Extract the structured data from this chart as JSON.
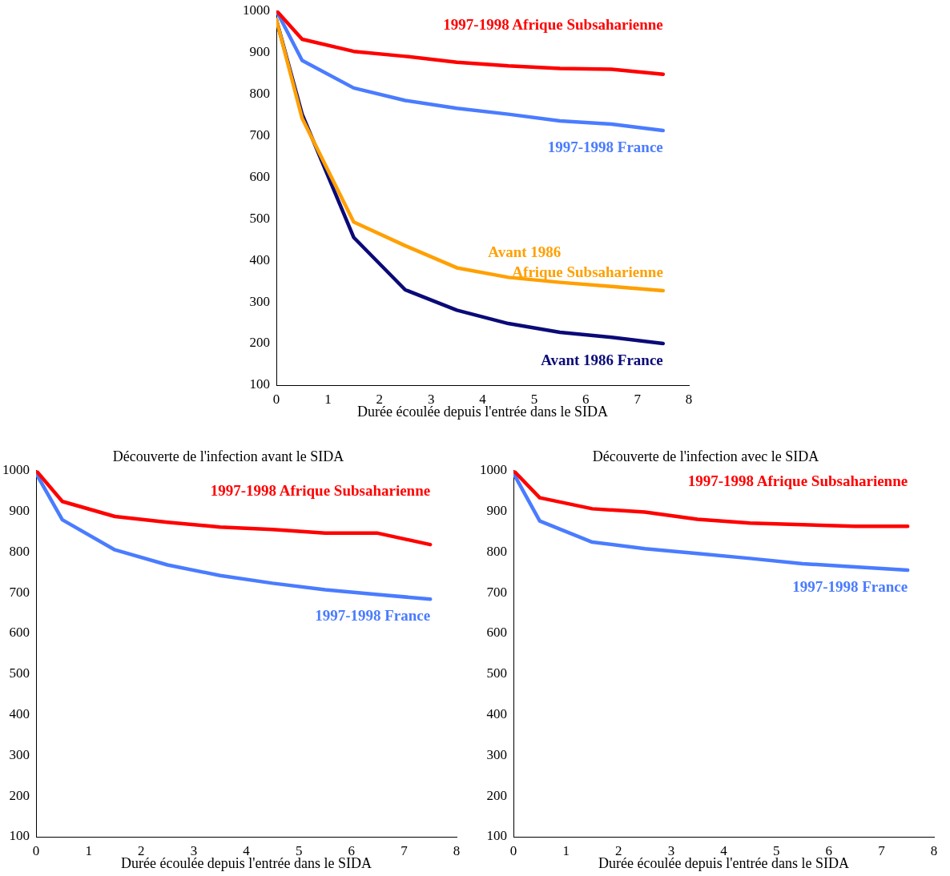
{
  "chart_data": [
    {
      "type": "line",
      "xlabel": "Durée écoulée depuis l'entrée dans le SIDA",
      "x": [
        0,
        0.5,
        1.5,
        2.5,
        3.5,
        4.5,
        5.5,
        6.5,
        7.5
      ],
      "xlim": [
        0,
        8
      ],
      "xticks": [
        0,
        1,
        2,
        3,
        4,
        5,
        6,
        7,
        8
      ],
      "ylim": [
        100,
        1000
      ],
      "yticks": [
        100,
        200,
        300,
        400,
        500,
        600,
        700,
        800,
        900,
        1000
      ],
      "grid": false,
      "legend": false,
      "marker": "none",
      "series": [
        {
          "name": "1997-1998 Afrique Subsaharienne",
          "color": "#ff0000",
          "values": [
            1000,
            931,
            902,
            890,
            876,
            867,
            861,
            859,
            847
          ]
        },
        {
          "name": "1997-1998 France",
          "color": "#4a7cff",
          "values": [
            1000,
            880,
            814,
            784,
            765,
            751,
            735,
            727,
            712
          ]
        },
        {
          "name": "Avant 1986\nAfrique Subsaharienne",
          "color": "#ffa000",
          "values": [
            978,
            741,
            492,
            435,
            382,
            359,
            347,
            337,
            327
          ]
        },
        {
          "name": "Avant 1986 France",
          "color": "#0a0a78",
          "values": [
            978,
            751,
            455,
            329,
            280,
            248,
            227,
            215,
            200
          ]
        }
      ]
    },
    {
      "type": "line",
      "title": "Découverte de l'infection avant le SIDA",
      "xlabel": "Durée écoulée depuis l'entrée dans le SIDA",
      "x": [
        0,
        0.5,
        1.5,
        2.5,
        3.5,
        4.5,
        5.5,
        6.5,
        7.5
      ],
      "xlim": [
        0,
        8
      ],
      "xticks": [
        0,
        1,
        2,
        3,
        4,
        5,
        6,
        7,
        8
      ],
      "ylim": [
        100,
        1000
      ],
      "yticks": [
        100,
        200,
        300,
        400,
        500,
        600,
        700,
        800,
        900,
        1000
      ],
      "grid": false,
      "legend": false,
      "marker": "none",
      "series": [
        {
          "name": "1997-1998 Afrique Subsaharienne",
          "color": "#ff0000",
          "values": [
            1000,
            924,
            887,
            873,
            861,
            855,
            846,
            846,
            818
          ]
        },
        {
          "name": "1997-1998 France",
          "color": "#4a7cff",
          "values": [
            993,
            879,
            805,
            768,
            742,
            723,
            707,
            695,
            684
          ]
        }
      ]
    },
    {
      "type": "line",
      "title": "Découverte de l'infection avec le SIDA",
      "xlabel": "Durée écoulée depuis l'entrée dans le SIDA",
      "x": [
        0,
        0.5,
        1.5,
        2.5,
        3.5,
        4.5,
        5.5,
        6.5,
        7.5
      ],
      "xlim": [
        0,
        8
      ],
      "xticks": [
        0,
        1,
        2,
        3,
        4,
        5,
        6,
        7,
        8
      ],
      "ylim": [
        100,
        1000
      ],
      "yticks": [
        100,
        200,
        300,
        400,
        500,
        600,
        700,
        800,
        900,
        1000
      ],
      "grid": false,
      "legend": false,
      "marker": "none",
      "series": [
        {
          "name": "1997-1998 Afrique Subsaharienne",
          "color": "#ff0000",
          "values": [
            1000,
            933,
            906,
            898,
            880,
            871,
            867,
            863,
            863
          ]
        },
        {
          "name": "1997-1998 France",
          "color": "#4a7cff",
          "values": [
            993,
            876,
            824,
            808,
            796,
            784,
            771,
            763,
            755
          ]
        }
      ]
    }
  ]
}
